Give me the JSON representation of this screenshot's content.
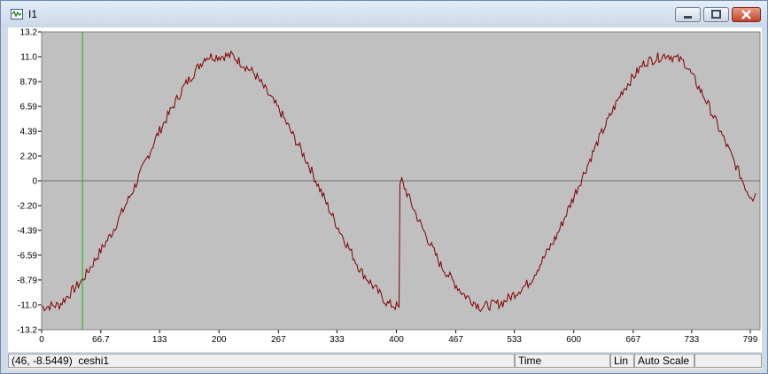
{
  "window": {
    "title": "I1",
    "icons": {
      "app": "waveform-icon",
      "minimize": "minimize-icon",
      "maximize": "maximize-icon",
      "close": "close-icon"
    }
  },
  "status_bar": {
    "cursor_readout": "(46, -8.5449)",
    "channel": "ceshi1",
    "x_axis_mode": "Time",
    "scale_type": "Lin",
    "scale_mode": "Auto Scale"
  },
  "colors": {
    "plot_bg": "#c0c0c0",
    "trace": "#800000",
    "cursor_line": "#00c000",
    "zero_line": "#707070"
  },
  "chart_data": {
    "type": "line",
    "title": "",
    "xlabel": "",
    "ylabel": "",
    "xlim": [
      0,
      810
    ],
    "ylim": [
      -13.2,
      13.2
    ],
    "grid": false,
    "x_ticks": [
      "0",
      "66.7",
      "133",
      "200",
      "267",
      "333",
      "400",
      "467",
      "533",
      "600",
      "667",
      "733",
      "799"
    ],
    "x_tick_values": [
      0,
      66.7,
      133,
      200,
      267,
      333,
      400,
      467,
      533,
      600,
      667,
      733,
      799
    ],
    "y_ticks": [
      "13.2",
      "11.0",
      "8.79",
      "6.59",
      "4.39",
      "2.20",
      "0",
      "-2.20",
      "-4.39",
      "-6.59",
      "-8.79",
      "-11.0",
      "-13.2"
    ],
    "y_tick_values": [
      13.2,
      11.0,
      8.79,
      6.59,
      4.39,
      2.2,
      0,
      -2.2,
      -4.39,
      -6.59,
      -8.79,
      -11.0,
      -13.2
    ],
    "cursor_x": 46,
    "series": [
      {
        "x": [
          0,
          20,
          46,
          80,
          105,
          130,
          160,
          185,
          215,
          240,
          270,
          300,
          330,
          360,
          390,
          403,
          404,
          406,
          425,
          450,
          475,
          495,
          520,
          550,
          580,
          605,
          630,
          655,
          680,
          705,
          725,
          750,
          775,
          795,
          800,
          802,
          805
        ],
        "y": [
          -11.2,
          -11.0,
          -8.8,
          -4.5,
          -0.5,
          4.0,
          8.3,
          11.0,
          11.1,
          9.5,
          6.0,
          1.6,
          -3.5,
          -8.0,
          -10.9,
          -11.2,
          -0.3,
          0.0,
          -3.5,
          -7.5,
          -10.0,
          -11.2,
          -10.8,
          -9.0,
          -5.0,
          -0.5,
          4.0,
          8.0,
          10.5,
          11.2,
          10.5,
          7.0,
          2.7,
          -0.8,
          -1.5,
          -1.8,
          -1.1
        ]
      }
    ]
  }
}
